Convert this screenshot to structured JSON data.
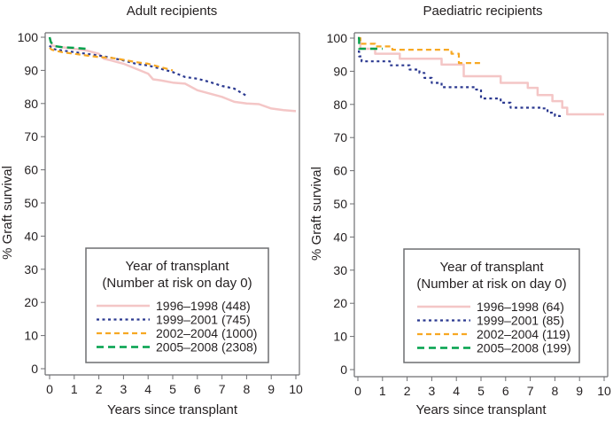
{
  "chart_data": [
    {
      "type": "line",
      "subtype": "kaplan-meier step",
      "title": "Adult recipients",
      "xlabel": "Years since transplant",
      "ylabel": "% Graft survival",
      "xlim": [
        0,
        10
      ],
      "ylim": [
        0,
        100
      ],
      "xticks": [
        "0",
        "1",
        "2",
        "3",
        "4",
        "5",
        "6",
        "7",
        "8",
        "9",
        "10"
      ],
      "yticks": [
        "0",
        "10",
        "20",
        "30",
        "40",
        "50",
        "60",
        "70",
        "80",
        "90",
        "100"
      ],
      "grid": false,
      "legend": {
        "title_line1": "Year of transplant",
        "title_line2": "(Number at risk on day 0)",
        "placement": "bottom-center"
      },
      "series": [
        {
          "name": "1996–1998 (448)",
          "color": "#f4c6c6",
          "style": "solid",
          "x": [
            0,
            0.1,
            0.5,
            1,
            1.5,
            2,
            2.2,
            2.5,
            3,
            3.5,
            4,
            4.2,
            4.5,
            5,
            5.5,
            6,
            6.5,
            7,
            7.5,
            8,
            8.5,
            9,
            9.5,
            10
          ],
          "y": [
            100,
            97.5,
            97,
            96.5,
            96,
            95,
            93.5,
            93,
            92,
            90.5,
            89,
            87.3,
            87,
            86.3,
            86,
            84,
            83,
            82,
            80.5,
            80,
            79.8,
            78.5,
            78,
            77.7
          ]
        },
        {
          "name": "1999–2001 (745)",
          "color": "#2b3990",
          "style": "dotted",
          "x": [
            0,
            0.1,
            0.5,
            1,
            1.5,
            2,
            2.5,
            3,
            3.5,
            4,
            4.5,
            5,
            5.5,
            6,
            6.5,
            7,
            7.5,
            8
          ],
          "y": [
            97.5,
            96.5,
            96,
            95.5,
            95,
            94.5,
            93.8,
            93,
            92,
            91.5,
            90.5,
            89.5,
            88,
            87.5,
            86.5,
            85.3,
            84.5,
            82.3
          ]
        },
        {
          "name": "2002–2004 (1000)",
          "color": "#f7a823",
          "style": "dashed",
          "x": [
            0,
            0.1,
            0.5,
            1,
            1.5,
            2,
            2.5,
            3,
            3.5,
            4,
            4.5,
            5
          ],
          "y": [
            96.8,
            96.2,
            95.5,
            95,
            94.5,
            94,
            93.8,
            93.2,
            92.5,
            92,
            91,
            90
          ]
        },
        {
          "name": "2005–2008 (2308)",
          "color": "#00a14b",
          "style": "long-dashed",
          "x": [
            0,
            0.05,
            0.2,
            0.5,
            1,
            1.5
          ],
          "y": [
            100,
            98.5,
            97.3,
            97,
            96.8,
            96.5
          ]
        }
      ]
    },
    {
      "type": "line",
      "subtype": "kaplan-meier step",
      "title": "Paediatric recipients",
      "xlabel": "Years since transplant",
      "ylabel": "% Graft survival",
      "xlim": [
        0,
        10
      ],
      "ylim": [
        0,
        100
      ],
      "xticks": [
        "0",
        "1",
        "2",
        "3",
        "4",
        "5",
        "6",
        "7",
        "8",
        "9",
        "10"
      ],
      "yticks": [
        "0",
        "10",
        "20",
        "30",
        "40",
        "50",
        "60",
        "70",
        "80",
        "90",
        "100"
      ],
      "grid": false,
      "legend": {
        "title_line1": "Year of transplant",
        "title_line2": "(Number at risk on day 0)",
        "placement": "bottom-center"
      },
      "series": [
        {
          "name": "1996–1998 (64)",
          "color": "#f4c6c6",
          "style": "solid",
          "x": [
            0,
            0.1,
            0.7,
            1.7,
            3.4,
            4.3,
            5.8,
            6.9,
            7.3,
            7.9,
            8.3,
            8.5,
            10
          ],
          "y": [
            100,
            96.8,
            95.3,
            93.8,
            92,
            88.5,
            86.5,
            85,
            82.8,
            81,
            79,
            77,
            77
          ]
        },
        {
          "name": "1999–2001 (85)",
          "color": "#2b3990",
          "style": "dotted",
          "x": [
            0,
            0.05,
            0.15,
            1.3,
            2.1,
            2.5,
            2.7,
            3.0,
            3.4,
            4.8,
            5.0,
            5.8,
            6.2,
            7.5,
            7.7,
            8.0,
            8.2
          ],
          "y": [
            96,
            94.5,
            93,
            91.8,
            90.5,
            89.5,
            88,
            86.5,
            85.2,
            84.5,
            81.8,
            80.5,
            79,
            78.8,
            77.5,
            76.5,
            76
          ]
        },
        {
          "name": "2002–2004 (119)",
          "color": "#f7a823",
          "style": "dashed",
          "x": [
            0,
            0.1,
            0.7,
            1.4,
            3.0,
            3.8,
            4.1,
            5.0
          ],
          "y": [
            100,
            98.3,
            97.5,
            96.5,
            96.5,
            95.3,
            92.5,
            92.5
          ]
        },
        {
          "name": "2005–2008 (199)",
          "color": "#00a14b",
          "style": "long-dashed",
          "x": [
            0,
            0.05,
            1.0
          ],
          "y": [
            100,
            96.8,
            96.8
          ]
        }
      ]
    }
  ]
}
